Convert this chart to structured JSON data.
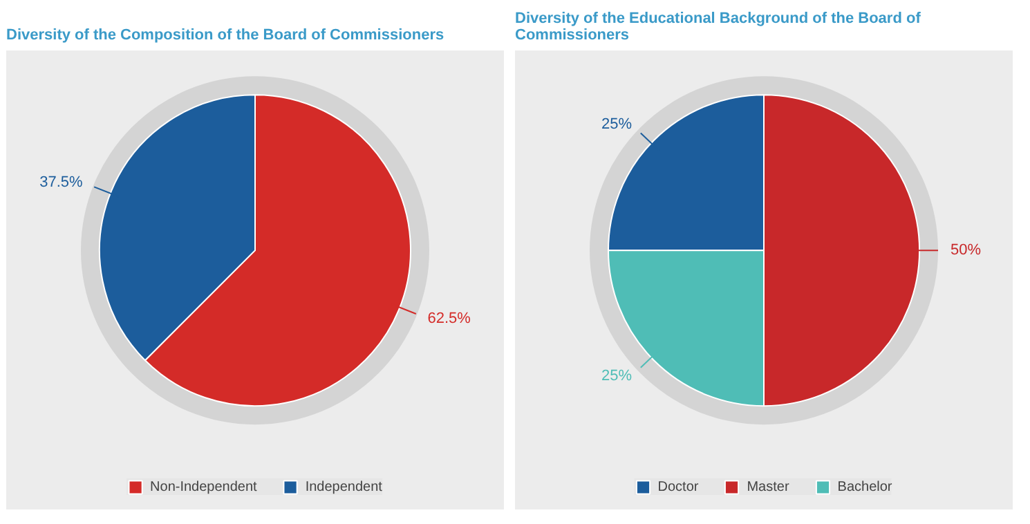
{
  "chart_data": [
    {
      "type": "pie",
      "title": "Diversity of the Composition of the Board of Commissioners",
      "categories": [
        "Non-Independent",
        "Independent"
      ],
      "values": [
        62.5,
        37.5
      ],
      "colors": [
        "#d42b28",
        "#1c5d9c"
      ],
      "value_labels": [
        "62.5%",
        "37.5%"
      ],
      "legend": "bottom"
    },
    {
      "type": "pie",
      "title": "Diversity of the Educational Background of the Board of Commissioners",
      "categories": [
        "Doctor",
        "Master",
        "Bachelor"
      ],
      "values": [
        25,
        50,
        25
      ],
      "colors": [
        "#1c5d9c",
        "#c8282a",
        "#4fbdb6"
      ],
      "value_labels": [
        "25%",
        "50%",
        "25%"
      ],
      "legend": "bottom"
    }
  ]
}
